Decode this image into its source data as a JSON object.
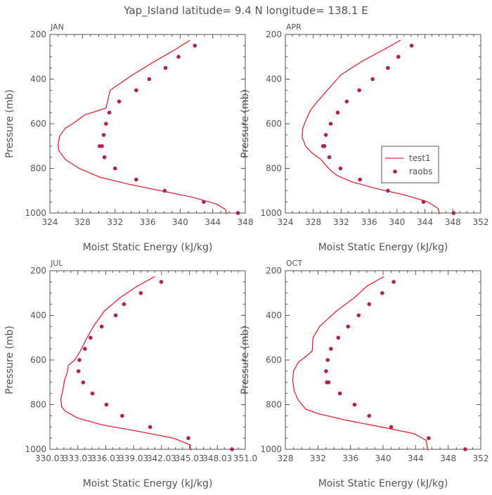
{
  "title": "Yap_Island   latitude= 9.4 N longitude= 138.1 E",
  "legend": {
    "model_label": "test1",
    "obs_label": "raobs"
  },
  "colors": {
    "line": "#e32636",
    "marker": "#b22251",
    "axis": "#555555",
    "text": "#555555"
  },
  "chart_data": [
    {
      "type": "line",
      "panel": "JAN",
      "xlabel": "Moist Static Energy (kJ/kg)",
      "ylabel": "Pressure (mb)",
      "xlim": [
        324,
        348
      ],
      "ylim": [
        1000,
        200
      ],
      "xticks": [
        324,
        328,
        332,
        336,
        340,
        344,
        348
      ],
      "xtick_labels": [
        "324",
        "328",
        "332",
        "336",
        "340",
        "344",
        "348"
      ],
      "yticks": [
        200,
        400,
        600,
        800,
        1000
      ],
      "ytick_labels": [
        "200",
        "400",
        "600",
        "800",
        "1000"
      ],
      "series": [
        {
          "name": "test1",
          "kind": "line",
          "x": [
            341.2,
            339.3,
            336.9,
            334.2,
            331.4,
            330.9,
            328.3,
            326.8,
            325.9,
            325.2,
            325.0,
            325.1,
            325.9,
            327.6,
            330.2,
            333.6,
            337.6,
            341.6,
            344.5,
            345.6,
            345.7
          ],
          "y": [
            226,
            270,
            320,
            380,
            450,
            530,
            560,
            600,
            620,
            655,
            695,
            720,
            760,
            800,
            840,
            870,
            900,
            930,
            960,
            985,
            1005
          ]
        },
        {
          "name": "raobs",
          "kind": "scatter",
          "x": [
            341.8,
            339.8,
            338.2,
            336.2,
            334.6,
            332.5,
            331.3,
            330.9,
            330.6,
            330.4,
            330.1,
            330.7,
            332.0,
            334.6,
            338.1,
            342.9,
            347.1
          ],
          "y": [
            250,
            300,
            350,
            400,
            450,
            500,
            550,
            600,
            650,
            700,
            700,
            750,
            800,
            850,
            900,
            950,
            1000
          ]
        }
      ]
    },
    {
      "type": "line",
      "panel": "APR",
      "xlabel": "Moist Static Energy (kJ/kg)",
      "ylabel": "Pressure (mb)",
      "xlim": [
        324,
        352
      ],
      "ylim": [
        1000,
        200
      ],
      "xticks": [
        324,
        328,
        332,
        336,
        340,
        344,
        348,
        352
      ],
      "xtick_labels": [
        "324",
        "328",
        "332",
        "336",
        "340",
        "344",
        "348",
        "352"
      ],
      "yticks": [
        200,
        400,
        600,
        800,
        1000
      ],
      "ytick_labels": [
        "200",
        "400",
        "600",
        "800",
        "1000"
      ],
      "series": [
        {
          "name": "test1",
          "kind": "line",
          "x": [
            340.5,
            338.0,
            335.0,
            332.0,
            330.0,
            328.6,
            327.6,
            327.0,
            326.5,
            326.4,
            326.9,
            327.8,
            329.1,
            330.2,
            331.3,
            333.5,
            337.0,
            341.2,
            344.4,
            345.9,
            346.1
          ],
          "y": [
            226,
            270,
            320,
            380,
            450,
            500,
            540,
            580,
            620,
            660,
            700,
            730,
            760,
            800,
            830,
            860,
            890,
            920,
            950,
            980,
            1005
          ]
        },
        {
          "name": "raobs",
          "kind": "scatter",
          "x": [
            342.1,
            340.2,
            338.7,
            336.5,
            334.6,
            332.8,
            331.5,
            330.5,
            329.8,
            329.6,
            329.4,
            330.3,
            331.9,
            334.7,
            338.7,
            343.8,
            348.1
          ],
          "y": [
            250,
            300,
            350,
            400,
            450,
            500,
            550,
            600,
            650,
            700,
            700,
            750,
            800,
            850,
            900,
            950,
            1000
          ]
        }
      ]
    },
    {
      "type": "line",
      "panel": "JUL",
      "xlabel": "Moist Static Energy (kJ/kg)",
      "ylabel": "Pressure (mb)",
      "xlim": [
        330.03,
        351.03
      ],
      "ylim": [
        1000,
        200
      ],
      "xticks": [
        330.03,
        333.03,
        336.03,
        339.03,
        342.03,
        345.03,
        348.03,
        351.03
      ],
      "xtick_labels": [
        "330.03",
        "333.03",
        "336.03",
        "339.03",
        "342.03",
        "345.03",
        "348.03",
        "351.0"
      ],
      "yticks": [
        200,
        400,
        600,
        800,
        1000
      ],
      "ytick_labels": [
        "200",
        "400",
        "600",
        "800",
        "1000"
      ],
      "series": [
        {
          "name": "test1",
          "kind": "line",
          "x": [
            341.3,
            339.4,
            337.6,
            335.9,
            334.7,
            333.9,
            333.3,
            332.7,
            332.0,
            331.9,
            331.6,
            331.4,
            331.2,
            331.3,
            331.7,
            333.0,
            335.6,
            339.6,
            343.3,
            345.1,
            345.2
          ],
          "y": [
            226,
            270,
            320,
            380,
            450,
            510,
            560,
            600,
            625,
            655,
            690,
            740,
            775,
            810,
            830,
            860,
            890,
            920,
            950,
            980,
            1005
          ]
        },
        {
          "name": "raobs",
          "kind": "scatter",
          "x": [
            342.0,
            339.8,
            338.0,
            337.1,
            335.6,
            334.4,
            333.8,
            333.2,
            333.1,
            333.6,
            334.6,
            336.1,
            337.8,
            340.8,
            344.9,
            349.6
          ],
          "y": [
            250,
            300,
            350,
            400,
            450,
            500,
            550,
            600,
            650,
            700,
            750,
            800,
            850,
            900,
            950,
            1000
          ]
        }
      ]
    },
    {
      "type": "line",
      "panel": "OCT",
      "xlabel": "Moist Static Energy (kJ/kg)",
      "ylabel": "Pressure (mb)",
      "xlim": [
        328,
        352
      ],
      "ylim": [
        1000,
        200
      ],
      "xticks": [
        328,
        332,
        336,
        340,
        344,
        348,
        352
      ],
      "xtick_labels": [
        "328",
        "332",
        "336",
        "340",
        "344",
        "348",
        "352"
      ],
      "yticks": [
        200,
        400,
        600,
        800,
        1000
      ],
      "ytick_labels": [
        "200",
        "400",
        "600",
        "800",
        "1000"
      ],
      "series": [
        {
          "name": "test1",
          "kind": "line",
          "x": [
            340.1,
            338.0,
            336.5,
            334.3,
            332.2,
            331.4,
            331.3,
            330.5,
            329.6,
            329.0,
            328.9,
            329.1,
            329.6,
            330.5,
            332.0,
            335.5,
            339.8,
            343.8,
            345.3,
            345.5
          ],
          "y": [
            226,
            270,
            320,
            380,
            450,
            500,
            560,
            585,
            610,
            650,
            690,
            740,
            780,
            820,
            840,
            870,
            900,
            930,
            960,
            1005
          ]
        },
        {
          "name": "raobs",
          "kind": "scatter",
          "x": [
            341.3,
            339.9,
            338.3,
            337.0,
            335.7,
            334.5,
            333.6,
            333.2,
            333.0,
            333.1,
            333.3,
            334.7,
            336.5,
            338.3,
            341.0,
            345.6,
            350.1
          ],
          "y": [
            250,
            300,
            350,
            400,
            450,
            500,
            550,
            600,
            650,
            700,
            700,
            750,
            800,
            850,
            900,
            950,
            1000
          ]
        }
      ]
    }
  ]
}
